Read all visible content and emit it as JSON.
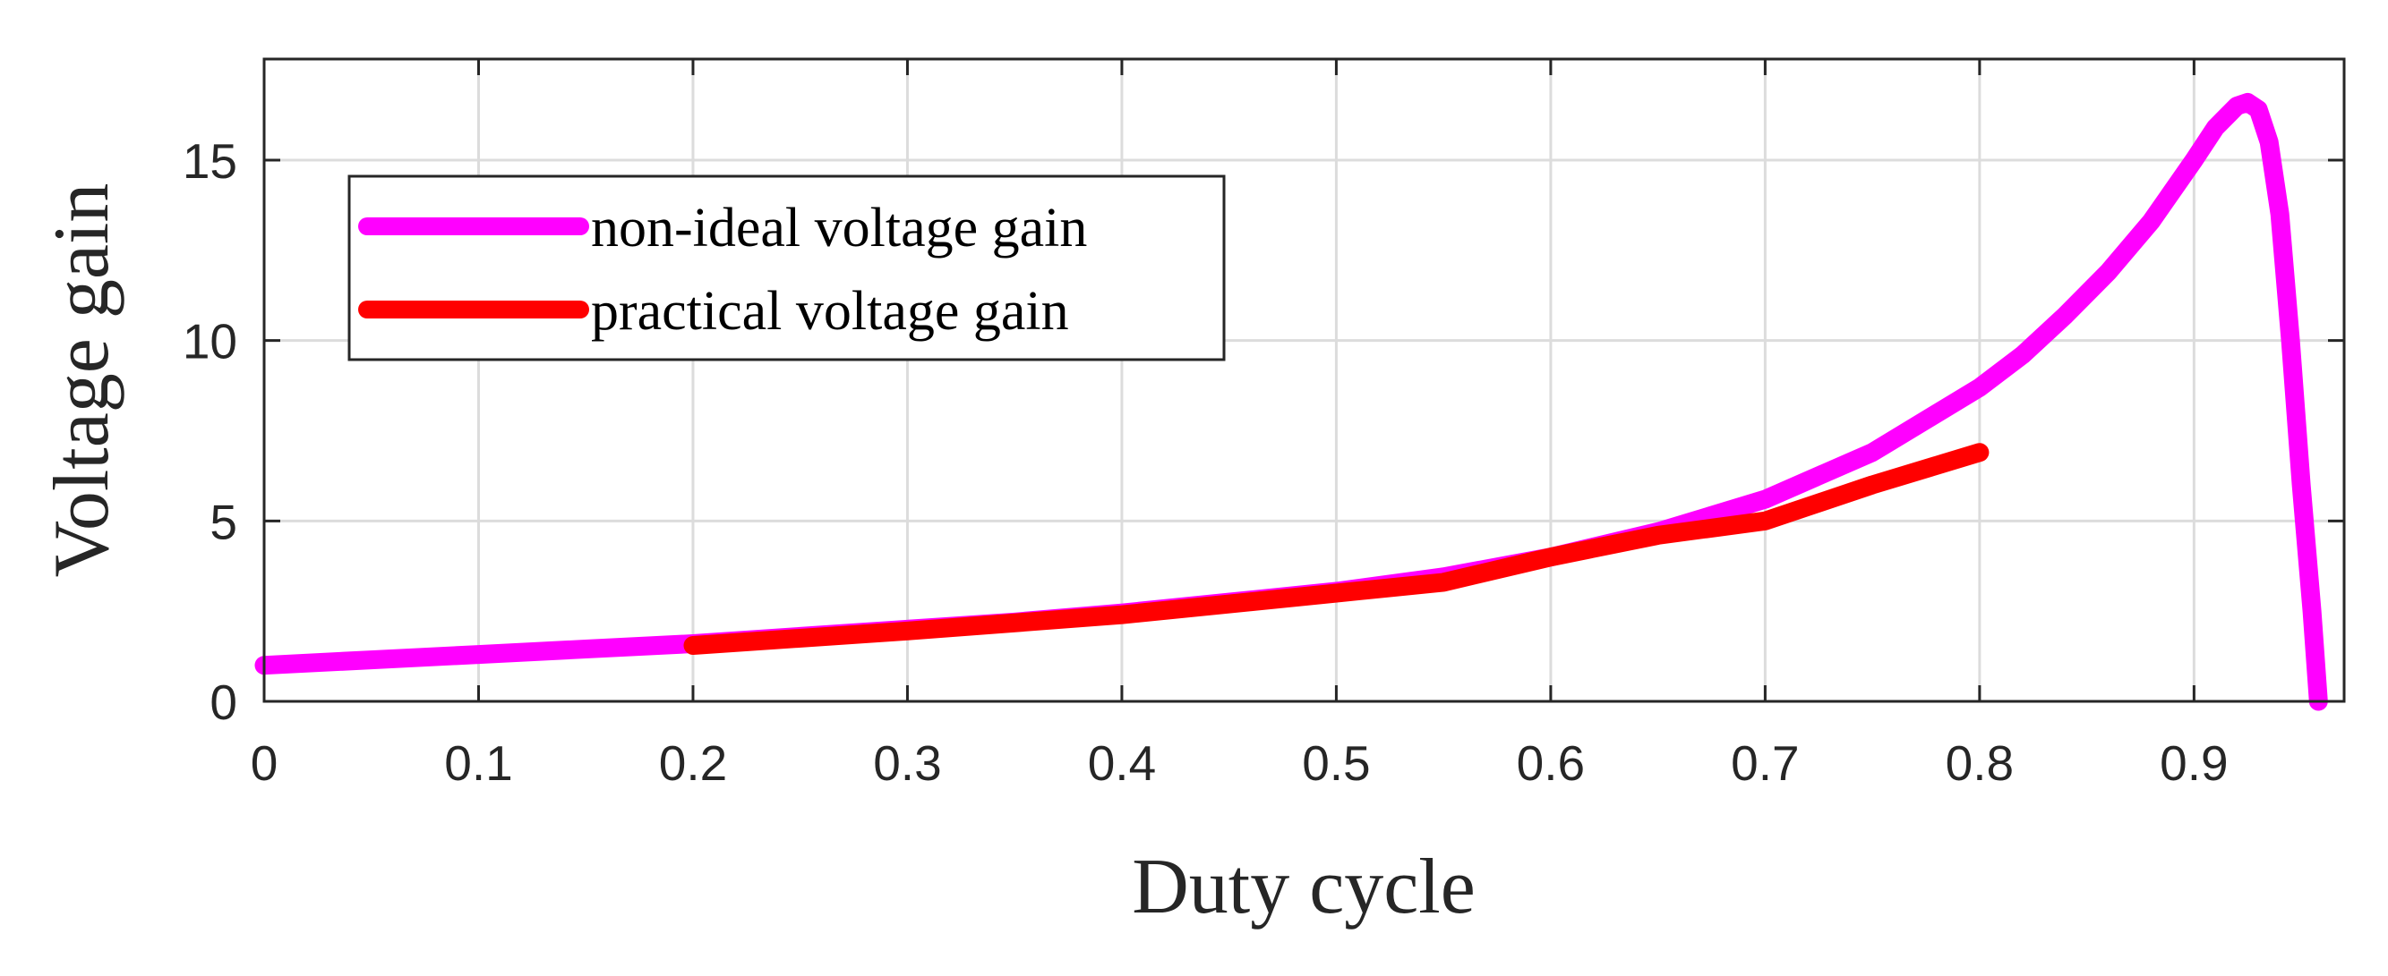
{
  "chart_data": {
    "type": "line",
    "title": "",
    "xlabel": "Duty cycle",
    "ylabel": "Voltage gain",
    "xlim": [
      0,
      0.97
    ],
    "ylim": [
      0,
      17.8
    ],
    "grid": true,
    "legend_position": "top-left",
    "xticks": [
      0,
      0.1,
      0.2,
      0.3,
      0.4,
      0.5,
      0.6,
      0.7,
      0.8,
      0.9
    ],
    "xtick_labels": [
      "0",
      "0.1",
      "0.2",
      "0.3",
      "0.4",
      "0.5",
      "0.6",
      "0.7",
      "0.8",
      "0.9"
    ],
    "yticks": [
      0,
      5,
      10,
      15
    ],
    "ytick_labels": [
      "0",
      "5",
      "10",
      "15"
    ],
    "series": [
      {
        "name": "non-ideal voltage gain",
        "color": "#ff00ff",
        "x": [
          0,
          0.05,
          0.1,
          0.15,
          0.2,
          0.25,
          0.3,
          0.35,
          0.4,
          0.45,
          0.5,
          0.55,
          0.6,
          0.65,
          0.7,
          0.75,
          0.8,
          0.82,
          0.84,
          0.86,
          0.88,
          0.9,
          0.91,
          0.92,
          0.925,
          0.93,
          0.935,
          0.94,
          0.945,
          0.95,
          0.955,
          0.958
        ],
        "y": [
          1.0,
          1.15,
          1.3,
          1.45,
          1.6,
          1.8,
          2.0,
          2.2,
          2.45,
          2.75,
          3.05,
          3.45,
          4.0,
          4.7,
          5.6,
          6.9,
          8.7,
          9.6,
          10.7,
          11.9,
          13.3,
          15.0,
          15.9,
          16.5,
          16.6,
          16.4,
          15.5,
          13.5,
          10.0,
          6.0,
          2.5,
          0.0
        ]
      },
      {
        "name": "practical voltage gain",
        "color": "#ff0000",
        "x": [
          0.2,
          0.3,
          0.4,
          0.5,
          0.55,
          0.6,
          0.65,
          0.7,
          0.75,
          0.8
        ],
        "y": [
          1.55,
          1.95,
          2.4,
          3.0,
          3.3,
          4.0,
          4.6,
          5.0,
          6.0,
          6.9
        ]
      }
    ]
  }
}
